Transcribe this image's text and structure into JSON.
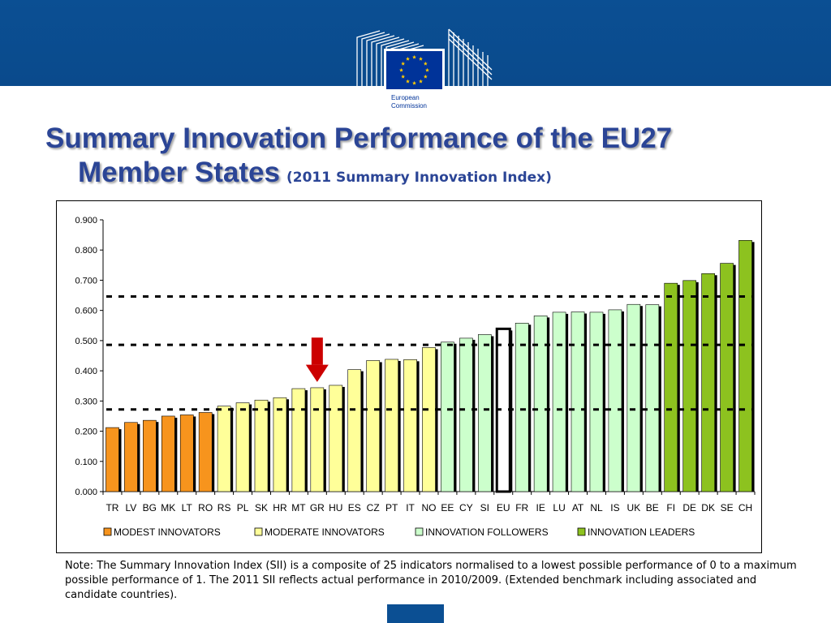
{
  "header": {
    "logo_text_line1": "European",
    "logo_text_line2": "Commission"
  },
  "title": {
    "line1": "Summary Innovation Performance of the EU27",
    "line2": "Member States",
    "subtitle": "(2011 Summary Innovation Index)"
  },
  "chart_data": {
    "type": "bar",
    "categories": [
      "TR",
      "LV",
      "BG",
      "MK",
      "LT",
      "RO",
      "RS",
      "PL",
      "SK",
      "HR",
      "MT",
      "GR",
      "HU",
      "ES",
      "CZ",
      "PT",
      "IT",
      "NO",
      "EE",
      "CY",
      "SI",
      "EU",
      "FR",
      "IE",
      "LU",
      "AT",
      "NL",
      "IS",
      "UK",
      "BE",
      "FI",
      "DE",
      "DK",
      "SE",
      "CH"
    ],
    "values": [
      0.212,
      0.229,
      0.236,
      0.25,
      0.254,
      0.262,
      0.283,
      0.294,
      0.303,
      0.311,
      0.341,
      0.344,
      0.352,
      0.404,
      0.434,
      0.438,
      0.437,
      0.477,
      0.495,
      0.508,
      0.52,
      0.539,
      0.558,
      0.582,
      0.594,
      0.595,
      0.594,
      0.602,
      0.62,
      0.619,
      0.69,
      0.699,
      0.722,
      0.756,
      0.832
    ],
    "groups": [
      "MODEST INNOVATORS",
      "MODEST INNOVATORS",
      "MODEST INNOVATORS",
      "MODEST INNOVATORS",
      "MODEST INNOVATORS",
      "MODEST INNOVATORS",
      "MODERATE INNOVATORS",
      "MODERATE INNOVATORS",
      "MODERATE INNOVATORS",
      "MODERATE INNOVATORS",
      "MODERATE INNOVATORS",
      "MODERATE INNOVATORS",
      "MODERATE INNOVATORS",
      "MODERATE INNOVATORS",
      "MODERATE INNOVATORS",
      "MODERATE INNOVATORS",
      "MODERATE INNOVATORS",
      "MODERATE INNOVATORS",
      "INNOVATION FOLLOWERS",
      "INNOVATION FOLLOWERS",
      "INNOVATION FOLLOWERS",
      "EU",
      "INNOVATION FOLLOWERS",
      "INNOVATION FOLLOWERS",
      "INNOVATION FOLLOWERS",
      "INNOVATION FOLLOWERS",
      "INNOVATION FOLLOWERS",
      "INNOVATION FOLLOWERS",
      "INNOVATION FOLLOWERS",
      "INNOVATION FOLLOWERS",
      "INNOVATION LEADERS",
      "INNOVATION LEADERS",
      "INNOVATION LEADERS",
      "INNOVATION LEADERS",
      "INNOVATION LEADERS"
    ],
    "legend": [
      {
        "name": "MODEST INNOVATORS",
        "color": "#f7941d"
      },
      {
        "name": "MODERATE INNOVATORS",
        "color": "#ffff99"
      },
      {
        "name": "INNOVATION FOLLOWERS",
        "color": "#ccffcc"
      },
      {
        "name": "INNOVATION LEADERS",
        "color": "#8dc21f"
      }
    ],
    "eu_color": "#ffffff",
    "threshold_lines": [
      0.272,
      0.486,
      0.646
    ],
    "highlight_arrow_at": "GR",
    "arrow_color": "#cc0000",
    "yticks": [
      "0.000",
      "0.100",
      "0.200",
      "0.300",
      "0.400",
      "0.500",
      "0.600",
      "0.700",
      "0.800",
      "0.900"
    ],
    "ylim": [
      0,
      0.9
    ],
    "xlabel": "",
    "ylabel": "",
    "grid": false,
    "legend_position": "bottom"
  },
  "note": "Note: The Summary Innovation Index (SII) is a composite of 25 indicators normalised to a lowest possible performance of 0 to a maximum possible performance of 1. The 2011 SII reflects actual performance in 2010/2009. (Extended benchmark including associated and candidate countries)."
}
